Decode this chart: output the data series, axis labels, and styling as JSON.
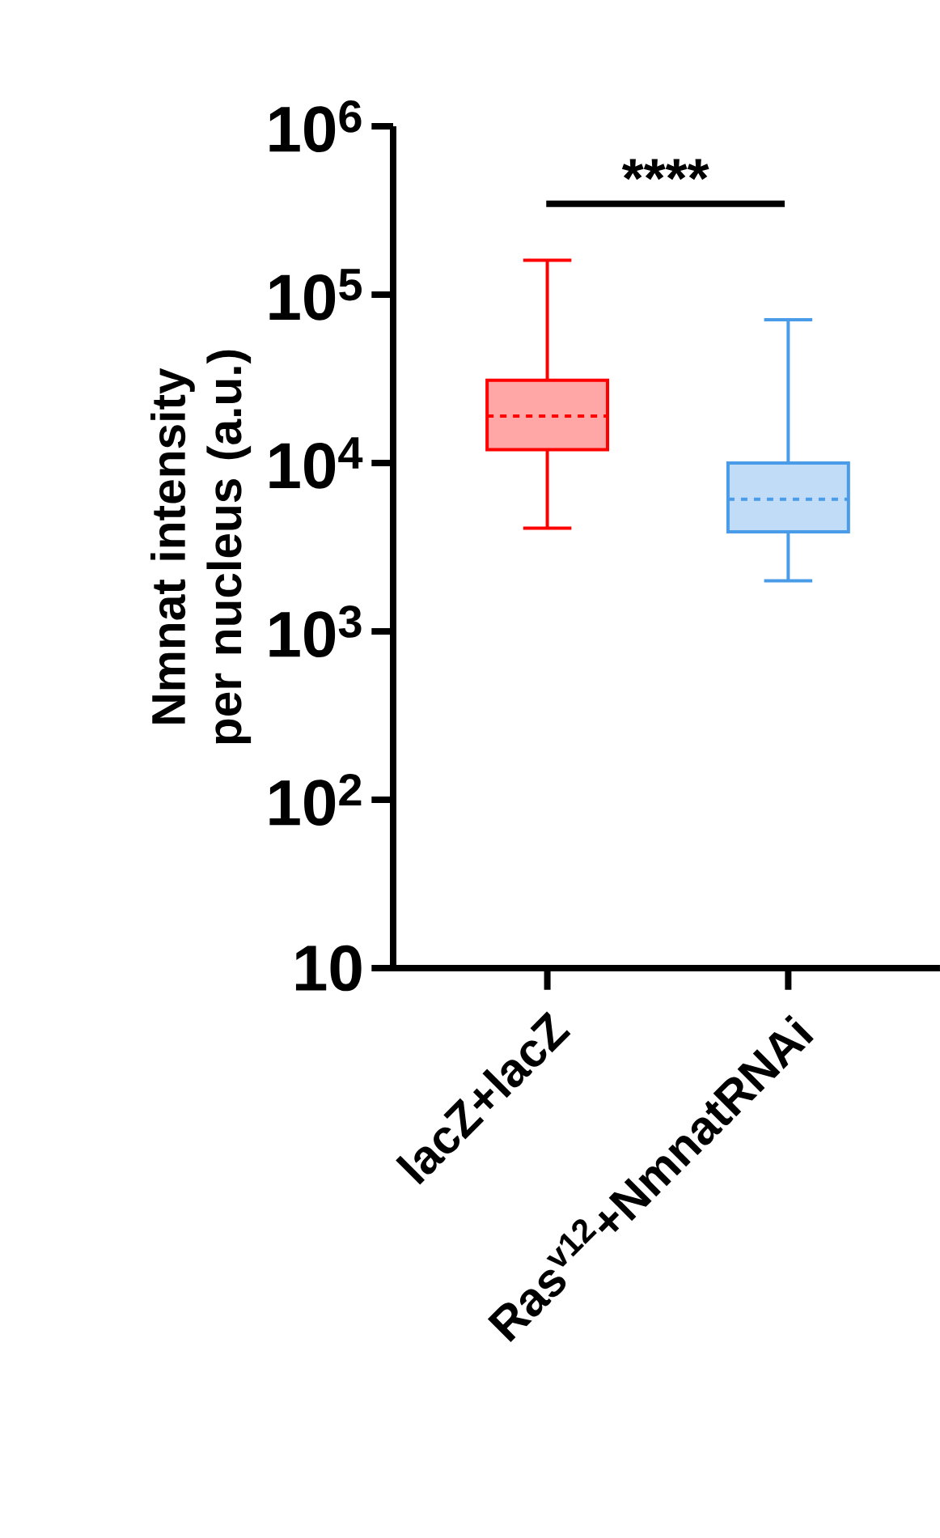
{
  "chart_data": {
    "type": "box",
    "ylabel": "Nmnat intensity per nucleus (a.u.)",
    "categories": [
      "lacZ+lacZ",
      "Ras$^{v12}$+NmnatRNAi"
    ],
    "boxes": [
      {
        "low": 4100,
        "q1": 12000,
        "median": 19000,
        "q3": 31000,
        "high": 160000
      },
      {
        "low": 2000,
        "q1": 3900,
        "median": 6100,
        "q3": 10000,
        "high": 71000
      }
    ],
    "colors": [
      "#ff0000",
      "#4a9be8"
    ],
    "log": true,
    "ylim": [
      10,
      1000000
    ],
    "yticks": [
      10,
      {
        "value": 100,
        "label": "10$^{2}$"
      },
      {
        "value": 1000,
        "label": "10$^{3}$"
      },
      {
        "value": 10000,
        "label": "10$^{4}$"
      },
      {
        "value": 100000,
        "label": "10$^{5}$"
      },
      {
        "value": 1000000,
        "label": "10$^{6}$"
      }
    ],
    "annotations": [
      "****"
    ]
  }
}
